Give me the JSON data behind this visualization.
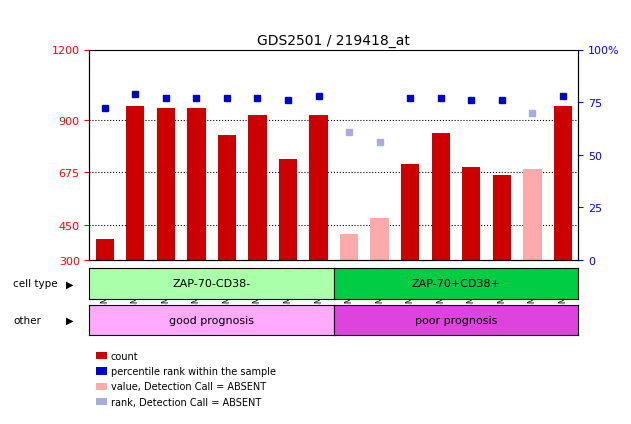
{
  "title": "GDS2501 / 219418_at",
  "samples": [
    "GSM99339",
    "GSM99340",
    "GSM99341",
    "GSM99342",
    "GSM99343",
    "GSM99344",
    "GSM99345",
    "GSM99346",
    "GSM99347",
    "GSM99348",
    "GSM99349",
    "GSM99350",
    "GSM99351",
    "GSM99352",
    "GSM99353",
    "GSM99354"
  ],
  "count_values": [
    390,
    960,
    950,
    950,
    835,
    920,
    730,
    920,
    null,
    null,
    710,
    845,
    700,
    665,
    null,
    960
  ],
  "count_absent": [
    null,
    null,
    null,
    null,
    null,
    null,
    null,
    null,
    410,
    480,
    null,
    null,
    null,
    null,
    690,
    null
  ],
  "rank_values": [
    72,
    79,
    77,
    77,
    77,
    77,
    76,
    78,
    null,
    null,
    77,
    77,
    76,
    76,
    null,
    78
  ],
  "rank_absent": [
    null,
    null,
    null,
    null,
    null,
    null,
    null,
    null,
    61,
    56,
    null,
    null,
    null,
    null,
    70,
    null
  ],
  "absent_mask": [
    false,
    false,
    false,
    false,
    false,
    false,
    false,
    false,
    true,
    true,
    false,
    false,
    false,
    false,
    true,
    false
  ],
  "cell_type_groups": [
    {
      "label": "ZAP-70-CD38-",
      "start": 0,
      "end": 8,
      "color": "#aaffaa"
    },
    {
      "label": "ZAP-70+CD38+",
      "start": 8,
      "end": 16,
      "color": "#00cc44"
    }
  ],
  "other_groups": [
    {
      "label": "good prognosis",
      "start": 0,
      "end": 8,
      "color": "#ffaaff"
    },
    {
      "label": "poor prognosis",
      "start": 8,
      "end": 16,
      "color": "#dd44dd"
    }
  ],
  "ylim_left": [
    300,
    1200
  ],
  "ylim_right": [
    0,
    100
  ],
  "yticks_left": [
    300,
    450,
    675,
    900,
    1200
  ],
  "yticks_right": [
    0,
    25,
    50,
    75,
    100
  ],
  "bar_color_present": "#cc0000",
  "bar_color_absent": "#ffaaaa",
  "rank_color_present": "#0000cc",
  "rank_color_absent": "#aaaadd",
  "legend_items": [
    {
      "color": "#cc0000",
      "label": "count"
    },
    {
      "color": "#0000cc",
      "label": "percentile rank within the sample"
    },
    {
      "color": "#ffaaaa",
      "label": "value, Detection Call = ABSENT"
    },
    {
      "color": "#aaaadd",
      "label": "rank, Detection Call = ABSENT"
    }
  ],
  "cell_type_label": "cell type",
  "other_label": "other",
  "background_color": "#ffffff"
}
